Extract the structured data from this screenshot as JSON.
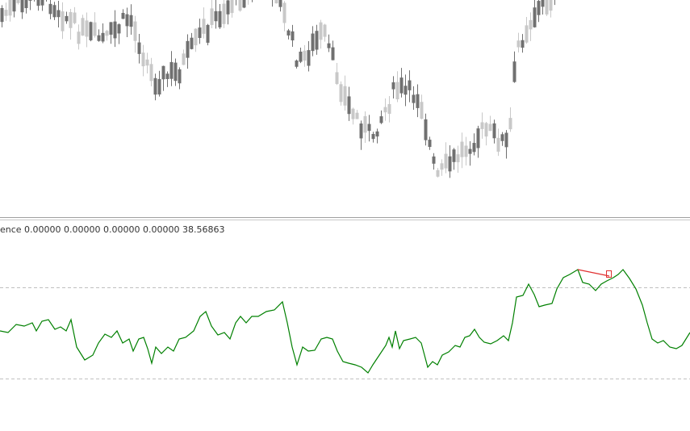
{
  "indicator_pane": {
    "label": "ence 0.00000 0.00000 0.00000 0.00000 38.56863"
  }
}
